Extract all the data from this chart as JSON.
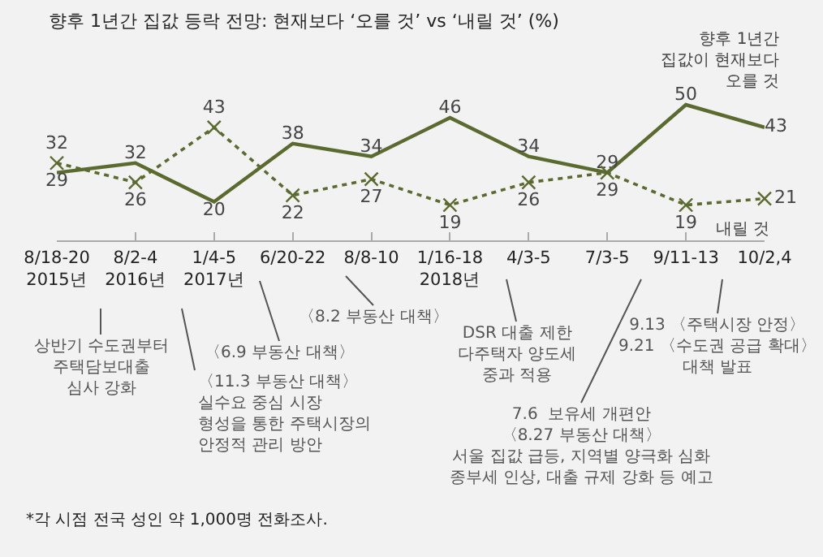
{
  "chart_data": {
    "type": "line",
    "title": "향후 1년간 집값 등락 전망: 현재보다 ‘오를 것’ vs ‘내릴 것’ (%)",
    "categories": [
      "8/18-20\n2015년",
      "8/2-4\n2016년",
      "1/4-5\n2017년",
      "6/20-22",
      "8/8-10",
      "1/16-18\n2018년",
      "4/3-5",
      "7/3-5",
      "9/11-13",
      "10/2,4"
    ],
    "series": [
      {
        "name": "향후 1년간\n집값이 현재보다\n오를 것",
        "color": "#5b6b30",
        "marker": "none",
        "line_style": "solid",
        "values": [
          29,
          32,
          20,
          38,
          34,
          46,
          34,
          29,
          50,
          43
        ]
      },
      {
        "name": "내릴 것",
        "color": "#5b6b30",
        "marker": "cross",
        "line_style": "dotted",
        "values": [
          32,
          26,
          43,
          22,
          27,
          19,
          26,
          29,
          19,
          21
        ]
      }
    ],
    "data_labels": true,
    "legend": false,
    "grid": false,
    "annotations": [
      "상반기 수도권부터\n주택담보대출\n심사 강화",
      "〈6.9 부동산 대책〉",
      "〈8.2 부동산 대책〉",
      "〈11.3 부동산 대책〉\n실수요 중심 시장\n형성을 통한 주택시장의\n안정적 관리 방안",
      "DSR 대출 제한\n다주택자 양도세\n중과 적용",
      "7.6  보유세 개편안\n〈8.27 부동산 대책〉\n서울 집값 급등, 지역별 양극화 심화\n종부세 인상, 대출 규제 강화 등 예고",
      "9.13 〈주택시장 안정〉\n9.21 〈수도권 공급 확대〉\n대책 발표",
      "*각 시점 전국 성인 약 1,000명 전화조사."
    ]
  }
}
